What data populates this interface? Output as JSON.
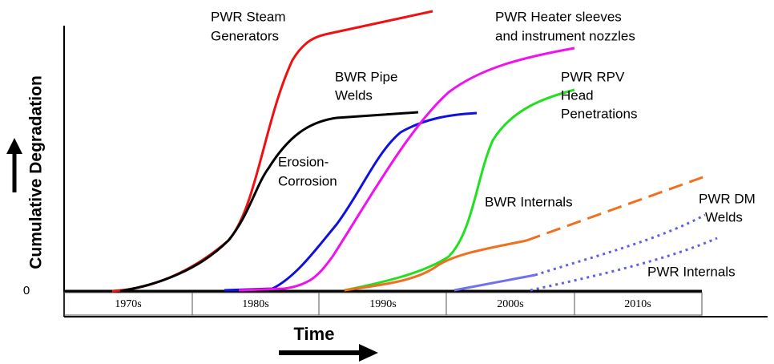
{
  "axes": {
    "y_label": "Cumulative Degradation",
    "x_label": "Time",
    "origin": "0",
    "decades": [
      "1970s",
      "1980s",
      "1990s",
      "2000s",
      "2010s"
    ]
  },
  "curves": [
    {
      "label": [
        "PWR Steam",
        "Generators"
      ]
    },
    {
      "label": [
        "BWR Pipe",
        "Welds"
      ]
    },
    {
      "label": [
        "Erosion-",
        "Corrosion"
      ]
    },
    {
      "label": [
        "PWR Heater sleeves",
        "and instrument nozzles"
      ]
    },
    {
      "label": [
        "PWR RPV",
        "Head",
        "Penetrations"
      ]
    },
    {
      "label": [
        "BWR Internals"
      ]
    },
    {
      "label": [
        "PWR DM",
        "Welds"
      ]
    },
    {
      "label": [
        "PWR Internals"
      ]
    }
  ]
}
